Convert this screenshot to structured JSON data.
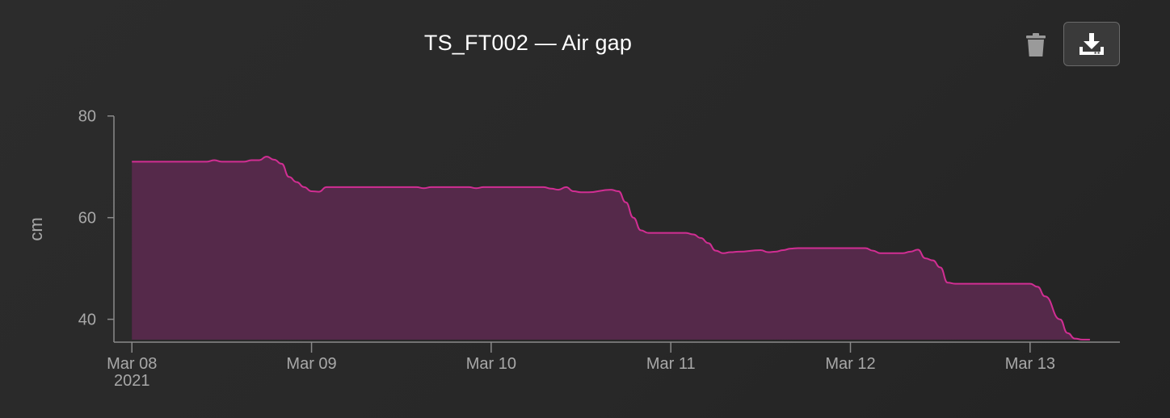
{
  "header": {
    "title": "TS_FT002 — Air gap",
    "delete_icon": "trash-icon",
    "download_icon": "download-icon"
  },
  "colors": {
    "line": "#d12e93",
    "fill": "#55294a",
    "axis": "#8a8a8a",
    "text": "#a8a8a8",
    "background": "#2a2a2a"
  },
  "chart_data": {
    "type": "area",
    "title": "TS_FT002 — Air gap",
    "xlabel": "",
    "ylabel": "cm",
    "ylim": [
      35.5,
      82.5
    ],
    "yticks": [
      80,
      60,
      40
    ],
    "ytick_labels": [
      "80",
      "60",
      "40"
    ],
    "baseline": 36,
    "xlim": [
      "2021-03-07T21:36",
      "2021-03-13T12:00"
    ],
    "xticks": [
      "2021-03-08",
      "2021-03-09",
      "2021-03-10",
      "2021-03-11",
      "2021-03-12",
      "2021-03-13"
    ],
    "xtick_labels": [
      "Mar 08",
      "Mar 09",
      "Mar 10",
      "Mar 11",
      "Mar 12",
      "Mar 13"
    ],
    "xtick_sublabel": "2021",
    "grid": false,
    "series": [
      {
        "name": "",
        "x": [
          "2021-03-08T00:00",
          "2021-03-08T10:00",
          "2021-03-08T11:00",
          "2021-03-08T12:00",
          "2021-03-08T15:00",
          "2021-03-08T16:00",
          "2021-03-08T17:00",
          "2021-03-08T18:00",
          "2021-03-08T19:00",
          "2021-03-08T20:00",
          "2021-03-08T21:00",
          "2021-03-08T22:00",
          "2021-03-08T23:00",
          "2021-03-09T00:00",
          "2021-03-09T01:00",
          "2021-03-09T02:00",
          "2021-03-09T03:00",
          "2021-03-09T04:00",
          "2021-03-09T05:00",
          "2021-03-09T06:00",
          "2021-03-09T14:00",
          "2021-03-09T15:00",
          "2021-03-09T16:00",
          "2021-03-09T21:00",
          "2021-03-09T22:00",
          "2021-03-09T23:00",
          "2021-03-10T07:00",
          "2021-03-10T08:00",
          "2021-03-10T09:00",
          "2021-03-10T10:00",
          "2021-03-10T11:00",
          "2021-03-10T12:00",
          "2021-03-10T13:00",
          "2021-03-10T16:00",
          "2021-03-10T17:00",
          "2021-03-10T18:00",
          "2021-03-10T19:00",
          "2021-03-10T20:00",
          "2021-03-10T21:00",
          "2021-03-10T22:00",
          "2021-03-11T02:00",
          "2021-03-11T03:00",
          "2021-03-11T04:00",
          "2021-03-11T05:00",
          "2021-03-11T06:00",
          "2021-03-11T07:00",
          "2021-03-11T08:00",
          "2021-03-11T09:00",
          "2021-03-11T12:00",
          "2021-03-11T13:00",
          "2021-03-11T14:00",
          "2021-03-11T15:00",
          "2021-03-11T16:00",
          "2021-03-11T17:00",
          "2021-03-11T18:00",
          "2021-03-12T01:00",
          "2021-03-12T02:00",
          "2021-03-12T03:00",
          "2021-03-12T04:00",
          "2021-03-12T07:00",
          "2021-03-12T08:00",
          "2021-03-12T09:00",
          "2021-03-12T10:00",
          "2021-03-12T11:00",
          "2021-03-12T12:00",
          "2021-03-12T13:00",
          "2021-03-12T14:00",
          "2021-03-12T15:00",
          "2021-03-12T16:00",
          "2021-03-12T20:00",
          "2021-03-13T00:00",
          "2021-03-13T01:00",
          "2021-03-13T02:00",
          "2021-03-13T04:00",
          "2021-03-13T05:00",
          "2021-03-13T06:00",
          "2021-03-13T07:00",
          "2021-03-13T08:00"
        ],
        "y": [
          71,
          71,
          71.3,
          71,
          71,
          71.3,
          71.3,
          72,
          71.4,
          70.6,
          68,
          67,
          66,
          65.2,
          65.1,
          66,
          66,
          66,
          66,
          66,
          66,
          65.8,
          66,
          66,
          65.8,
          66,
          66,
          65.7,
          65.5,
          66,
          65.2,
          65,
          65,
          65.5,
          65.2,
          63,
          60,
          57.5,
          57,
          57,
          57,
          56.7,
          56,
          55,
          53.5,
          53,
          53.2,
          53.3,
          53.6,
          53.2,
          53.3,
          53.6,
          53.9,
          54,
          54,
          54,
          54,
          53.5,
          53,
          53,
          53.3,
          53.7,
          52,
          51.6,
          50.2,
          47.2,
          47,
          47,
          47,
          47,
          47,
          46.4,
          44.5,
          40,
          37.3,
          36.2,
          36,
          36
        ]
      }
    ]
  }
}
